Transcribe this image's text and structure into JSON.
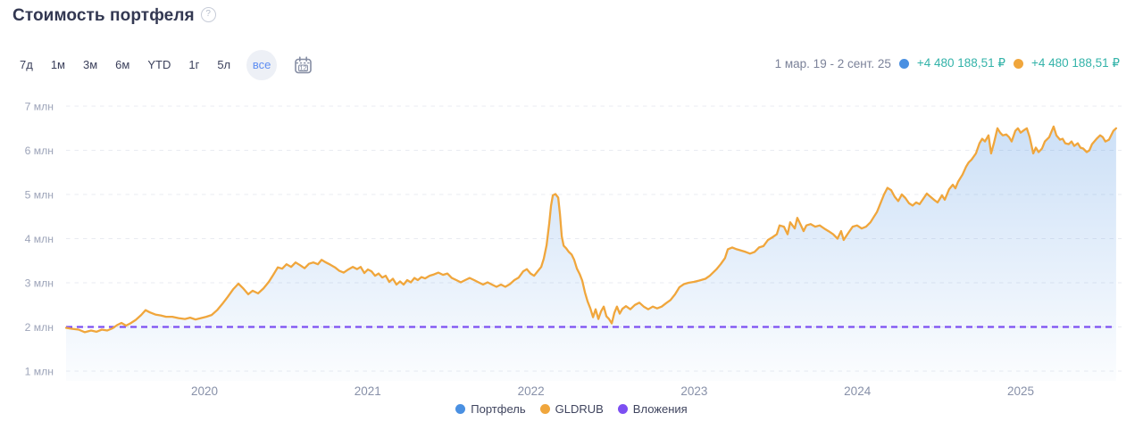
{
  "header": {
    "title": "Стоимость портфеля",
    "help_glyph": "?"
  },
  "toolbar": {
    "ranges": [
      {
        "id": "7d",
        "label": "7д",
        "selected": false
      },
      {
        "id": "1m",
        "label": "1м",
        "selected": false
      },
      {
        "id": "3m",
        "label": "3м",
        "selected": false
      },
      {
        "id": "6m",
        "label": "6м",
        "selected": false
      },
      {
        "id": "ytd",
        "label": "YTD",
        "selected": false
      },
      {
        "id": "1y",
        "label": "1г",
        "selected": false
      },
      {
        "id": "5y",
        "label": "5л",
        "selected": false
      },
      {
        "id": "all",
        "label": "все",
        "selected": true
      }
    ],
    "calendar_label": "12"
  },
  "summary": {
    "date_range": "1 мар. 19 - 2 сент. 25",
    "items": [
      {
        "id": "portfolio",
        "color": "#4a90e2",
        "value": "+4 480 188,51 ₽"
      },
      {
        "id": "gldrub",
        "color": "#f0a63c",
        "value": "+4 480 188,51 ₽"
      }
    ],
    "value_color": "#33b3a9"
  },
  "legend": [
    {
      "id": "portfolio",
      "label": "Портфель",
      "color": "#4a90e2"
    },
    {
      "id": "gldrub",
      "label": "GLDRUB",
      "color": "#f0a63c"
    },
    {
      "id": "investments",
      "label": "Вложения",
      "color": "#7c4ff2"
    }
  ],
  "chart_data": {
    "type": "line",
    "title": "Стоимость портфеля",
    "xlabel": "",
    "ylabel": "млн ₽",
    "grid": "horizontal-dashed",
    "legend_position": "bottom-center",
    "x_axis": {
      "unit": "decimal year",
      "range": [
        2019.15,
        2025.67
      ],
      "ticks": [
        2020,
        2021,
        2022,
        2023,
        2024,
        2025
      ]
    },
    "y_axis": {
      "unit": "млн ₽",
      "range": [
        0.5,
        7.5
      ],
      "tick_values": [
        1,
        2,
        3,
        4,
        5,
        6,
        7
      ],
      "tick_labels": [
        "1 млн",
        "2 млн",
        "3 млн",
        "4 млн",
        "5 млн",
        "6 млн",
        "7 млн"
      ]
    },
    "series": [
      {
        "name": "Портфель",
        "color": "#4a90e2",
        "style": "area",
        "note": "coincides with GLDRUB curve; shown as blue gradient area under the shared line"
      },
      {
        "name": "GLDRUB",
        "color": "#f0a63c",
        "style": "line",
        "points": [
          [
            2019.152,
            1.98
          ],
          [
            2019.185,
            1.96
          ],
          [
            2019.229,
            1.94
          ],
          [
            2019.267,
            1.88
          ],
          [
            2019.305,
            1.92
          ],
          [
            2019.338,
            1.89
          ],
          [
            2019.371,
            1.94
          ],
          [
            2019.404,
            1.92
          ],
          [
            2019.437,
            1.97
          ],
          [
            2019.464,
            2.04
          ],
          [
            2019.491,
            2.09
          ],
          [
            2019.519,
            2.03
          ],
          [
            2019.546,
            2.08
          ],
          [
            2019.579,
            2.16
          ],
          [
            2019.612,
            2.27
          ],
          [
            2019.639,
            2.38
          ],
          [
            2019.666,
            2.33
          ],
          [
            2019.699,
            2.28
          ],
          [
            2019.732,
            2.26
          ],
          [
            2019.765,
            2.23
          ],
          [
            2019.803,
            2.23
          ],
          [
            2019.841,
            2.2
          ],
          [
            2019.88,
            2.18
          ],
          [
            2019.912,
            2.21
          ],
          [
            2019.945,
            2.17
          ],
          [
            2019.978,
            2.2
          ],
          [
            2020.011,
            2.23
          ],
          [
            2020.044,
            2.27
          ],
          [
            2020.077,
            2.38
          ],
          [
            2020.109,
            2.52
          ],
          [
            2020.142,
            2.68
          ],
          [
            2020.175,
            2.85
          ],
          [
            2020.208,
            2.98
          ],
          [
            2020.235,
            2.88
          ],
          [
            2020.268,
            2.74
          ],
          [
            2020.295,
            2.82
          ],
          [
            2020.328,
            2.76
          ],
          [
            2020.361,
            2.87
          ],
          [
            2020.394,
            3.02
          ],
          [
            2020.421,
            3.18
          ],
          [
            2020.449,
            3.35
          ],
          [
            2020.476,
            3.32
          ],
          [
            2020.503,
            3.42
          ],
          [
            2020.531,
            3.36
          ],
          [
            2020.558,
            3.46
          ],
          [
            2020.585,
            3.4
          ],
          [
            2020.613,
            3.33
          ],
          [
            2020.64,
            3.43
          ],
          [
            2020.667,
            3.46
          ],
          [
            2020.695,
            3.42
          ],
          [
            2020.717,
            3.52
          ],
          [
            2020.744,
            3.46
          ],
          [
            2020.771,
            3.41
          ],
          [
            2020.799,
            3.35
          ],
          [
            2020.826,
            3.27
          ],
          [
            2020.853,
            3.23
          ],
          [
            2020.881,
            3.3
          ],
          [
            2020.908,
            3.36
          ],
          [
            2020.935,
            3.31
          ],
          [
            2020.957,
            3.36
          ],
          [
            2020.979,
            3.22
          ],
          [
            2021.001,
            3.3
          ],
          [
            2021.023,
            3.26
          ],
          [
            2021.045,
            3.16
          ],
          [
            2021.067,
            3.21
          ],
          [
            2021.089,
            3.12
          ],
          [
            2021.11,
            3.16
          ],
          [
            2021.132,
            3.02
          ],
          [
            2021.154,
            3.09
          ],
          [
            2021.176,
            2.96
          ],
          [
            2021.198,
            3.03
          ],
          [
            2021.22,
            2.96
          ],
          [
            2021.242,
            3.06
          ],
          [
            2021.264,
            3.01
          ],
          [
            2021.286,
            3.11
          ],
          [
            2021.307,
            3.06
          ],
          [
            2021.329,
            3.13
          ],
          [
            2021.351,
            3.1
          ],
          [
            2021.379,
            3.16
          ],
          [
            2021.406,
            3.19
          ],
          [
            2021.433,
            3.23
          ],
          [
            2021.461,
            3.18
          ],
          [
            2021.488,
            3.21
          ],
          [
            2021.515,
            3.11
          ],
          [
            2021.543,
            3.06
          ],
          [
            2021.57,
            3.01
          ],
          [
            2021.597,
            3.06
          ],
          [
            2021.625,
            3.11
          ],
          [
            2021.652,
            3.06
          ],
          [
            2021.679,
            3.01
          ],
          [
            2021.707,
            2.96
          ],
          [
            2021.734,
            3.01
          ],
          [
            2021.761,
            2.96
          ],
          [
            2021.789,
            2.91
          ],
          [
            2021.816,
            2.96
          ],
          [
            2021.843,
            2.91
          ],
          [
            2021.871,
            2.97
          ],
          [
            2021.898,
            3.06
          ],
          [
            2021.925,
            3.12
          ],
          [
            2021.953,
            3.26
          ],
          [
            2021.975,
            3.31
          ],
          [
            2021.997,
            3.21
          ],
          [
            2022.019,
            3.16
          ],
          [
            2022.041,
            3.26
          ],
          [
            2022.063,
            3.36
          ],
          [
            2022.079,
            3.55
          ],
          [
            2022.096,
            3.85
          ],
          [
            2022.112,
            4.35
          ],
          [
            2022.123,
            4.75
          ],
          [
            2022.134,
            4.98
          ],
          [
            2022.15,
            5.01
          ],
          [
            2022.167,
            4.93
          ],
          [
            2022.178,
            4.55
          ],
          [
            2022.189,
            4.05
          ],
          [
            2022.2,
            3.84
          ],
          [
            2022.216,
            3.78
          ],
          [
            2022.232,
            3.7
          ],
          [
            2022.249,
            3.64
          ],
          [
            2022.265,
            3.52
          ],
          [
            2022.282,
            3.32
          ],
          [
            2022.298,
            3.2
          ],
          [
            2022.314,
            3.05
          ],
          [
            2022.331,
            2.78
          ],
          [
            2022.347,
            2.58
          ],
          [
            2022.364,
            2.42
          ],
          [
            2022.38,
            2.22
          ],
          [
            2022.396,
            2.4
          ],
          [
            2022.413,
            2.18
          ],
          [
            2022.429,
            2.35
          ],
          [
            2022.446,
            2.46
          ],
          [
            2022.462,
            2.24
          ],
          [
            2022.478,
            2.18
          ],
          [
            2022.495,
            2.08
          ],
          [
            2022.511,
            2.32
          ],
          [
            2022.527,
            2.46
          ],
          [
            2022.544,
            2.3
          ],
          [
            2022.56,
            2.41
          ],
          [
            2022.582,
            2.47
          ],
          [
            2022.609,
            2.4
          ],
          [
            2022.637,
            2.5
          ],
          [
            2022.664,
            2.55
          ],
          [
            2022.691,
            2.46
          ],
          [
            2022.719,
            2.4
          ],
          [
            2022.746,
            2.46
          ],
          [
            2022.773,
            2.42
          ],
          [
            2022.801,
            2.46
          ],
          [
            2022.828,
            2.54
          ],
          [
            2022.855,
            2.61
          ],
          [
            2022.883,
            2.74
          ],
          [
            2022.91,
            2.9
          ],
          [
            2022.937,
            2.97
          ],
          [
            2022.965,
            3.0
          ],
          [
            2022.998,
            3.02
          ],
          [
            2023.031,
            3.05
          ],
          [
            2023.069,
            3.09
          ],
          [
            2023.096,
            3.16
          ],
          [
            2023.135,
            3.3
          ],
          [
            2023.162,
            3.42
          ],
          [
            2023.189,
            3.56
          ],
          [
            2023.206,
            3.76
          ],
          [
            2023.233,
            3.8
          ],
          [
            2023.26,
            3.76
          ],
          [
            2023.288,
            3.73
          ],
          [
            2023.315,
            3.7
          ],
          [
            2023.342,
            3.66
          ],
          [
            2023.37,
            3.7
          ],
          [
            2023.397,
            3.8
          ],
          [
            2023.424,
            3.83
          ],
          [
            2023.452,
            3.97
          ],
          [
            2023.479,
            4.03
          ],
          [
            2023.506,
            4.1
          ],
          [
            2023.523,
            4.3
          ],
          [
            2023.55,
            4.27
          ],
          [
            2023.572,
            4.1
          ],
          [
            2023.588,
            4.37
          ],
          [
            2023.616,
            4.23
          ],
          [
            2023.632,
            4.47
          ],
          [
            2023.654,
            4.3
          ],
          [
            2023.67,
            4.17
          ],
          [
            2023.687,
            4.3
          ],
          [
            2023.714,
            4.33
          ],
          [
            2023.741,
            4.27
          ],
          [
            2023.769,
            4.3
          ],
          [
            2023.796,
            4.23
          ],
          [
            2023.823,
            4.17
          ],
          [
            2023.851,
            4.1
          ],
          [
            2023.878,
            4.0
          ],
          [
            2023.9,
            4.17
          ],
          [
            2023.916,
            3.97
          ],
          [
            2023.944,
            4.13
          ],
          [
            2023.971,
            4.27
          ],
          [
            2023.998,
            4.3
          ],
          [
            2024.026,
            4.23
          ],
          [
            2024.053,
            4.27
          ],
          [
            2024.08,
            4.37
          ],
          [
            2024.097,
            4.47
          ],
          [
            2024.119,
            4.6
          ],
          [
            2024.141,
            4.8
          ],
          [
            2024.163,
            5.0
          ],
          [
            2024.184,
            5.15
          ],
          [
            2024.206,
            5.1
          ],
          [
            2024.228,
            4.95
          ],
          [
            2024.25,
            4.85
          ],
          [
            2024.272,
            5.0
          ],
          [
            2024.294,
            4.92
          ],
          [
            2024.316,
            4.8
          ],
          [
            2024.338,
            4.75
          ],
          [
            2024.36,
            4.82
          ],
          [
            2024.381,
            4.78
          ],
          [
            2024.403,
            4.9
          ],
          [
            2024.425,
            5.02
          ],
          [
            2024.447,
            4.95
          ],
          [
            2024.469,
            4.88
          ],
          [
            2024.491,
            4.82
          ],
          [
            2024.518,
            4.98
          ],
          [
            2024.535,
            4.88
          ],
          [
            2024.562,
            5.12
          ],
          [
            2024.584,
            5.22
          ],
          [
            2024.6,
            5.14
          ],
          [
            2024.617,
            5.29
          ],
          [
            2024.644,
            5.45
          ],
          [
            2024.666,
            5.63
          ],
          [
            2024.682,
            5.73
          ],
          [
            2024.699,
            5.79
          ],
          [
            2024.726,
            5.93
          ],
          [
            2024.748,
            6.16
          ],
          [
            2024.764,
            6.26
          ],
          [
            2024.781,
            6.2
          ],
          [
            2024.803,
            6.34
          ],
          [
            2024.819,
            5.93
          ],
          [
            2024.836,
            6.16
          ],
          [
            2024.858,
            6.5
          ],
          [
            2024.874,
            6.4
          ],
          [
            2024.89,
            6.34
          ],
          [
            2024.912,
            6.36
          ],
          [
            2024.929,
            6.3
          ],
          [
            2024.945,
            6.2
          ],
          [
            2024.967,
            6.44
          ],
          [
            2024.983,
            6.5
          ],
          [
            2025.0,
            6.4
          ],
          [
            2025.022,
            6.46
          ],
          [
            2025.038,
            6.5
          ],
          [
            2025.055,
            6.3
          ],
          [
            2025.077,
            5.93
          ],
          [
            2025.093,
            6.06
          ],
          [
            2025.11,
            5.96
          ],
          [
            2025.131,
            6.04
          ],
          [
            2025.148,
            6.2
          ],
          [
            2025.175,
            6.3
          ],
          [
            2025.202,
            6.54
          ],
          [
            2025.219,
            6.34
          ],
          [
            2025.241,
            6.24
          ],
          [
            2025.257,
            6.26
          ],
          [
            2025.273,
            6.16
          ],
          [
            2025.295,
            6.14
          ],
          [
            2025.312,
            6.2
          ],
          [
            2025.328,
            6.1
          ],
          [
            2025.35,
            6.16
          ],
          [
            2025.366,
            6.06
          ],
          [
            2025.383,
            6.04
          ],
          [
            2025.405,
            5.96
          ],
          [
            2025.421,
            6.0
          ],
          [
            2025.437,
            6.14
          ],
          [
            2025.465,
            6.26
          ],
          [
            2025.487,
            6.34
          ],
          [
            2025.503,
            6.3
          ],
          [
            2025.519,
            6.2
          ],
          [
            2025.541,
            6.24
          ],
          [
            2025.568,
            6.44
          ],
          [
            2025.585,
            6.5
          ]
        ]
      },
      {
        "name": "Вложения",
        "color": "#7c4ff2",
        "style": "dashed-horizontal",
        "value": 2.0
      }
    ]
  }
}
